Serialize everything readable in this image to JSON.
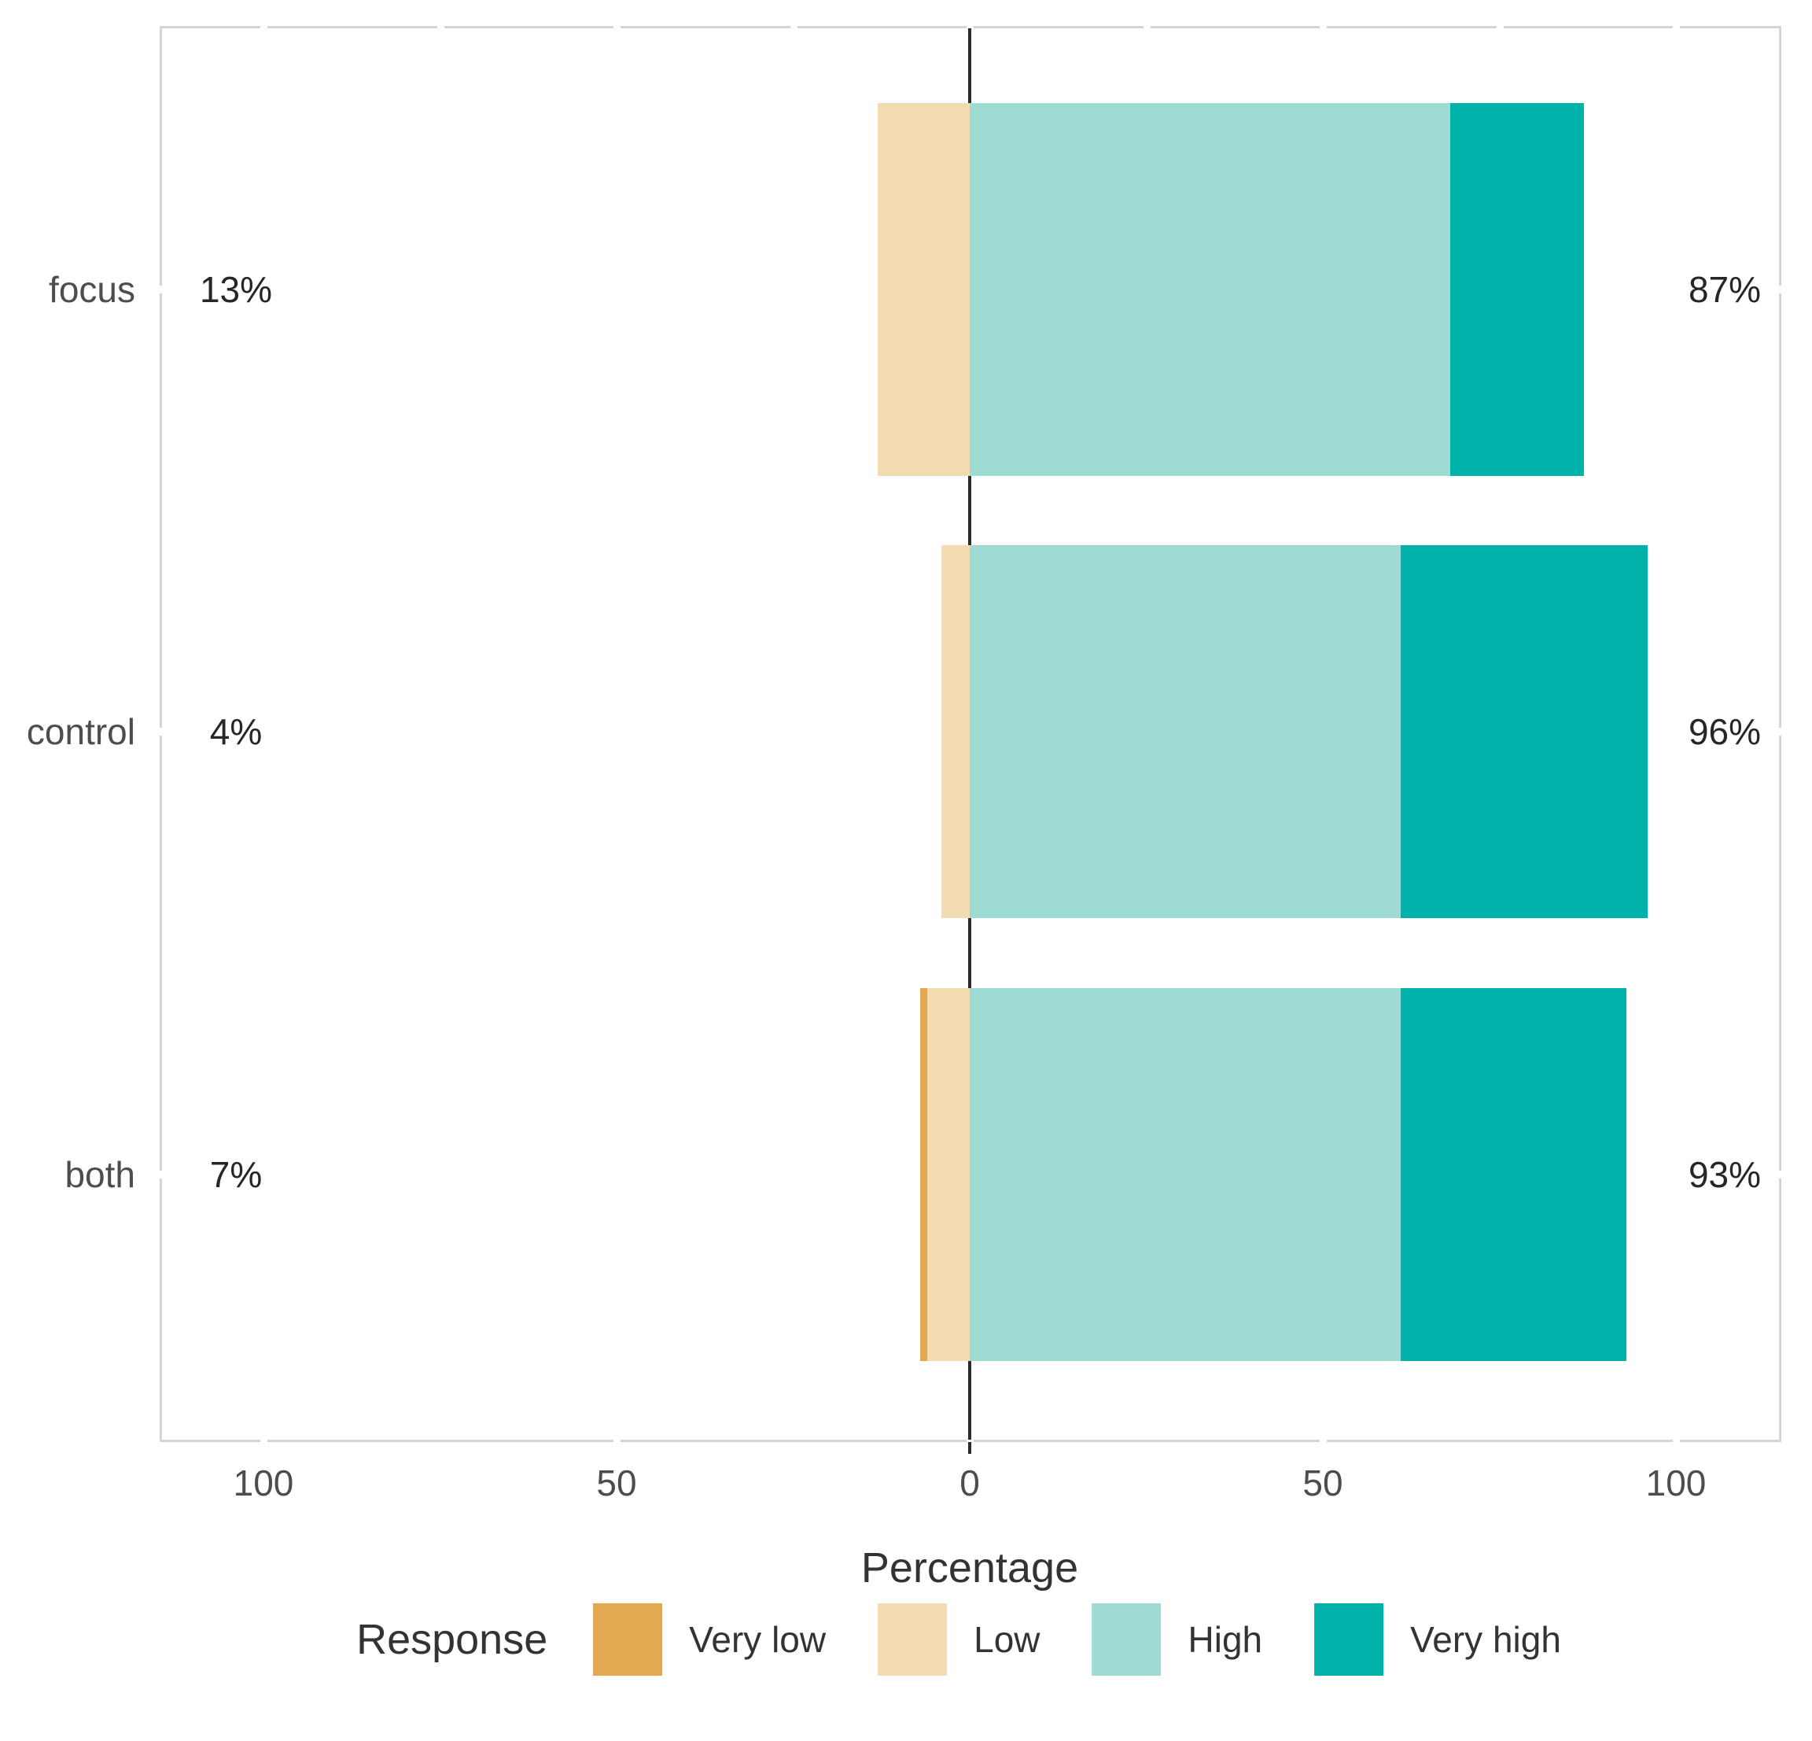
{
  "figure": {
    "xlabel": "Percentage",
    "legend_title": "Response"
  },
  "colors": {
    "very_low": "#e2a952",
    "low": "#f3dcb2",
    "high": "#9edbd5",
    "very_high": "#00b2a9",
    "zero_line": "#2b2b2b",
    "panel_border": "#d5d5d5",
    "axis_text": "#4d4d4d",
    "value_text": "#262626"
  },
  "chart_data": {
    "type": "bar",
    "subtype": "diverging-stacked-likert",
    "title": "",
    "xlabel": "Percentage",
    "ylabel": "",
    "categories": [
      "focus",
      "control",
      "both"
    ],
    "series": [
      {
        "name": "Very low",
        "values": [
          0,
          0,
          1
        ]
      },
      {
        "name": "Low",
        "values": [
          13,
          4,
          6
        ]
      },
      {
        "name": "High",
        "values": [
          68,
          61,
          61
        ]
      },
      {
        "name": "Very high",
        "values": [
          19,
          35,
          32
        ]
      }
    ],
    "left_total_labels": [
      "13%",
      "4%",
      "7%"
    ],
    "right_total_labels": [
      "87%",
      "96%",
      "93%"
    ],
    "legend_title": "Response",
    "legend_entries": [
      "Very low",
      "Low",
      "High",
      "Very high"
    ],
    "xlim": [
      -115,
      115
    ],
    "x_ticks": [
      -100,
      -50,
      0,
      50,
      100
    ],
    "x_tick_labels": [
      "100",
      "50",
      "0",
      "50",
      "100"
    ],
    "x_minor_ticks": [
      -100,
      -75,
      -50,
      -25,
      0,
      25,
      50,
      75,
      100
    ],
    "grid": false,
    "legend_position": "bottom"
  }
}
